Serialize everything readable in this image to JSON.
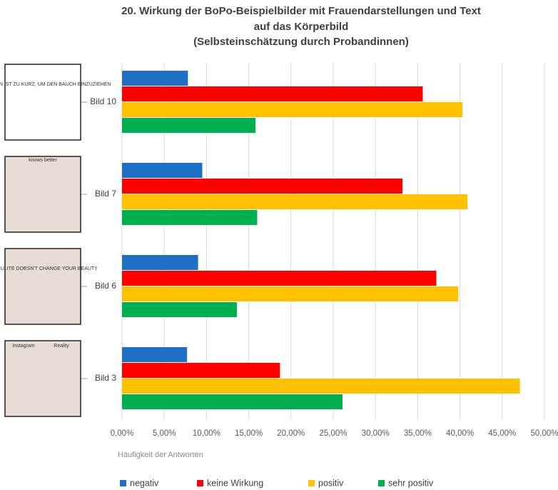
{
  "chart_data": {
    "type": "hbar",
    "title": [
      "20. Wirkung der BoPo-Beispielbilder mit Frauendarstellungen und Text",
      "auf das Körperbild",
      "(Selbsteinschätzung durch Probandinnen)"
    ],
    "categories": [
      "Bild 10",
      "Bild 7",
      "Bild 6",
      "Bild 3"
    ],
    "category_images": [
      {
        "texts": [
          "DAS LEBEN IST ZU KURZ, UM DEN BAUCH EINZUZIEHEN"
        ]
      },
      {
        "texts": [
          "knows better"
        ]
      },
      {
        "texts": [
          "CELLULITE DOESN'T CHANGE YOUR BEAUTY"
        ]
      },
      {
        "texts": [
          "Instagram",
          "Reality"
        ]
      }
    ],
    "series": [
      {
        "name": "negativ",
        "color": "#1f6fc5",
        "values": [
          7.8,
          9.5,
          9.0,
          7.7
        ]
      },
      {
        "name": "keine Wirkung",
        "color": "#ff0000",
        "values": [
          35.6,
          33.2,
          37.2,
          18.7
        ]
      },
      {
        "name": "positiv",
        "color": "#ffc000",
        "values": [
          40.3,
          40.9,
          39.8,
          47.1
        ]
      },
      {
        "name": "sehr positiv",
        "color": "#00b050",
        "values": [
          15.8,
          16.0,
          13.6,
          26.1
        ]
      }
    ],
    "xlabel": "Häufigkeit der Antworten",
    "xlim": [
      0,
      50
    ],
    "xticks": [
      {
        "value": 0,
        "label": "0,00%"
      },
      {
        "value": 5,
        "label": "5,00%"
      },
      {
        "value": 10,
        "label": "10,00%"
      },
      {
        "value": 15,
        "label": "15,00%"
      },
      {
        "value": 20,
        "label": "20,00%"
      },
      {
        "value": 25,
        "label": "25,00%"
      },
      {
        "value": 30,
        "label": "30,00%"
      },
      {
        "value": 35,
        "label": "35,00%"
      },
      {
        "value": 40,
        "label": "40,00%"
      },
      {
        "value": 45,
        "label": "45,00%"
      },
      {
        "value": 50,
        "label": "50,00%"
      }
    ],
    "grid": true,
    "legend": "bottom"
  }
}
